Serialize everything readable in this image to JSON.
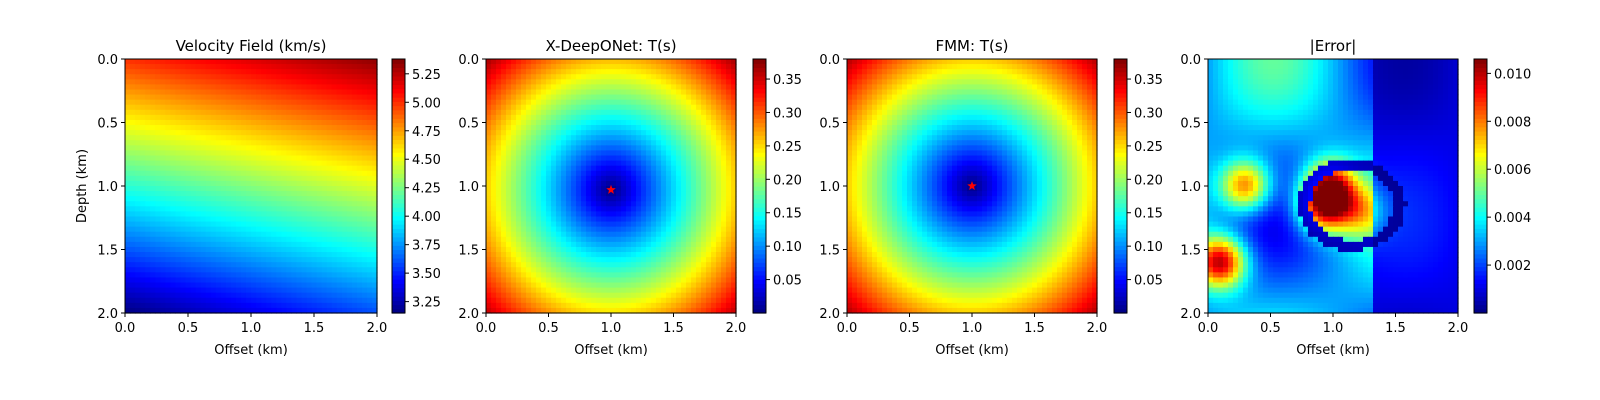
{
  "chart_data": [
    {
      "type": "heatmap",
      "title": "Velocity Field (km/s)",
      "xlabel": "Offset (km)",
      "ylabel": "Depth (km)",
      "xlim": [
        0.0,
        2.0
      ],
      "ylim": [
        2.0,
        0.0
      ],
      "xticks": [
        "0.0",
        "0.5",
        "1.0",
        "1.5",
        "2.0"
      ],
      "yticks": [
        "0.0",
        "0.5",
        "1.0",
        "1.5",
        "2.0"
      ],
      "colormap": "jet",
      "field": "linear_gradient",
      "top_left_value": 5.0,
      "top_right_value": 5.35,
      "bottom_left_value": 3.15,
      "bottom_right_value": 3.6,
      "colorbar_range": [
        3.15,
        5.38
      ],
      "colorbar_ticks": [
        "3.25",
        "3.50",
        "3.75",
        "4.00",
        "4.25",
        "4.50",
        "4.75",
        "5.00",
        "5.25"
      ]
    },
    {
      "type": "heatmap",
      "title": "X-DeepONet: T(s)",
      "xlabel": "Offset (km)",
      "xlim": [
        0.0,
        2.0
      ],
      "ylim": [
        2.0,
        0.0
      ],
      "xticks": [
        "0.0",
        "0.5",
        "1.0",
        "1.5",
        "2.0"
      ],
      "yticks": [
        "0.0",
        "0.5",
        "1.0",
        "1.5",
        "2.0"
      ],
      "colormap": "jet",
      "field": "traveltime",
      "source": {
        "x": 1.0,
        "y": 1.03
      },
      "source_marker_color": "#ff0000",
      "colorbar_range": [
        0.0,
        0.38
      ],
      "colorbar_ticks": [
        "0.05",
        "0.10",
        "0.15",
        "0.20",
        "0.25",
        "0.30",
        "0.35"
      ]
    },
    {
      "type": "heatmap",
      "title": "FMM: T(s)",
      "xlabel": "Offset (km)",
      "xlim": [
        0.0,
        2.0
      ],
      "ylim": [
        2.0,
        0.0
      ],
      "xticks": [
        "0.0",
        "0.5",
        "1.0",
        "1.5",
        "2.0"
      ],
      "yticks": [
        "0.0",
        "0.5",
        "1.0",
        "1.5",
        "2.0"
      ],
      "colormap": "jet",
      "field": "traveltime",
      "source": {
        "x": 1.0,
        "y": 1.0
      },
      "source_marker_color": "#ff0000",
      "colorbar_range": [
        0.0,
        0.38
      ],
      "colorbar_ticks": [
        "0.05",
        "0.10",
        "0.15",
        "0.20",
        "0.25",
        "0.30",
        "0.35"
      ]
    },
    {
      "type": "heatmap",
      "title": "|Error|",
      "xlabel": "Offset (km)",
      "xlim": [
        0.0,
        2.0
      ],
      "ylim": [
        2.0,
        0.0
      ],
      "xticks": [
        "0.0",
        "0.5",
        "1.0",
        "1.5",
        "2.0"
      ],
      "yticks": [
        "0.0",
        "0.5",
        "1.0",
        "1.5",
        "2.0"
      ],
      "colormap": "jet",
      "field": "error",
      "colorbar_range": [
        0.0,
        0.0106
      ],
      "colorbar_ticks": [
        "0.002",
        "0.004",
        "0.006",
        "0.008",
        "0.010"
      ],
      "hotspots": [
        {
          "x": 0.1,
          "y": 1.6,
          "value": 0.0105
        },
        {
          "x": 0.3,
          "y": 1.0,
          "value": 0.0085
        },
        {
          "x": 0.92,
          "y": 1.17,
          "value": 0.0092
        },
        {
          "x": 0.98,
          "y": 1.0,
          "value": 0.009
        },
        {
          "x": 1.2,
          "y": 1.2,
          "value": 0.0045
        }
      ]
    }
  ]
}
